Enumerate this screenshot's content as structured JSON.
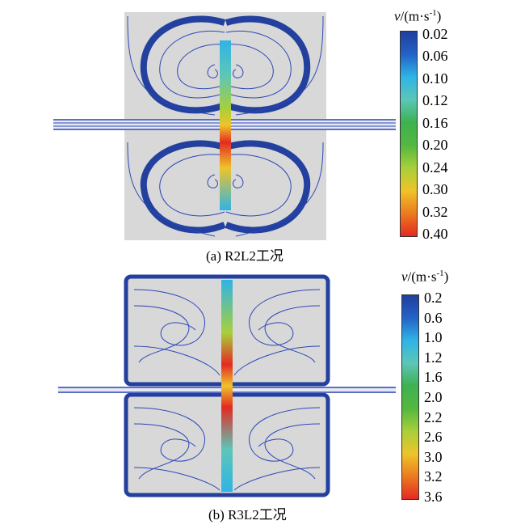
{
  "panels": [
    {
      "caption": "(a) R2L2工况",
      "scale_title": {
        "symbol": "v",
        "unit_prefix": "/(m·s",
        "unit_exp": "-1",
        "unit_suffix": ")"
      },
      "ticks": [
        "0.02",
        "0.06",
        "0.10",
        "0.12",
        "0.16",
        "0.20",
        "0.24",
        "0.30",
        "0.32",
        "0.40"
      ],
      "colors": [
        "#1f3f9e",
        "#2462c6",
        "#2fb4e6",
        "#5cc6b8",
        "#3eb150",
        "#54b840",
        "#a8cf3a",
        "#eec42a",
        "#ec7a1f",
        "#e42a22"
      ]
    },
    {
      "caption": "(b) R3L2工况",
      "scale_title": {
        "symbol": "v",
        "unit_prefix": "/(m·s",
        "unit_exp": "-1",
        "unit_suffix": ")"
      },
      "ticks": [
        "0.2",
        "0.6",
        "1.0",
        "1.2",
        "1.6",
        "2.0",
        "2.2",
        "2.6",
        "3.0",
        "3.2",
        "3.6"
      ],
      "colors": [
        "#1f3f9e",
        "#2462c6",
        "#2fb4e6",
        "#5cc6b8",
        "#3eb150",
        "#54b840",
        "#a8cf3a",
        "#eec42a",
        "#ec7a1f",
        "#e42a22"
      ]
    }
  ]
}
